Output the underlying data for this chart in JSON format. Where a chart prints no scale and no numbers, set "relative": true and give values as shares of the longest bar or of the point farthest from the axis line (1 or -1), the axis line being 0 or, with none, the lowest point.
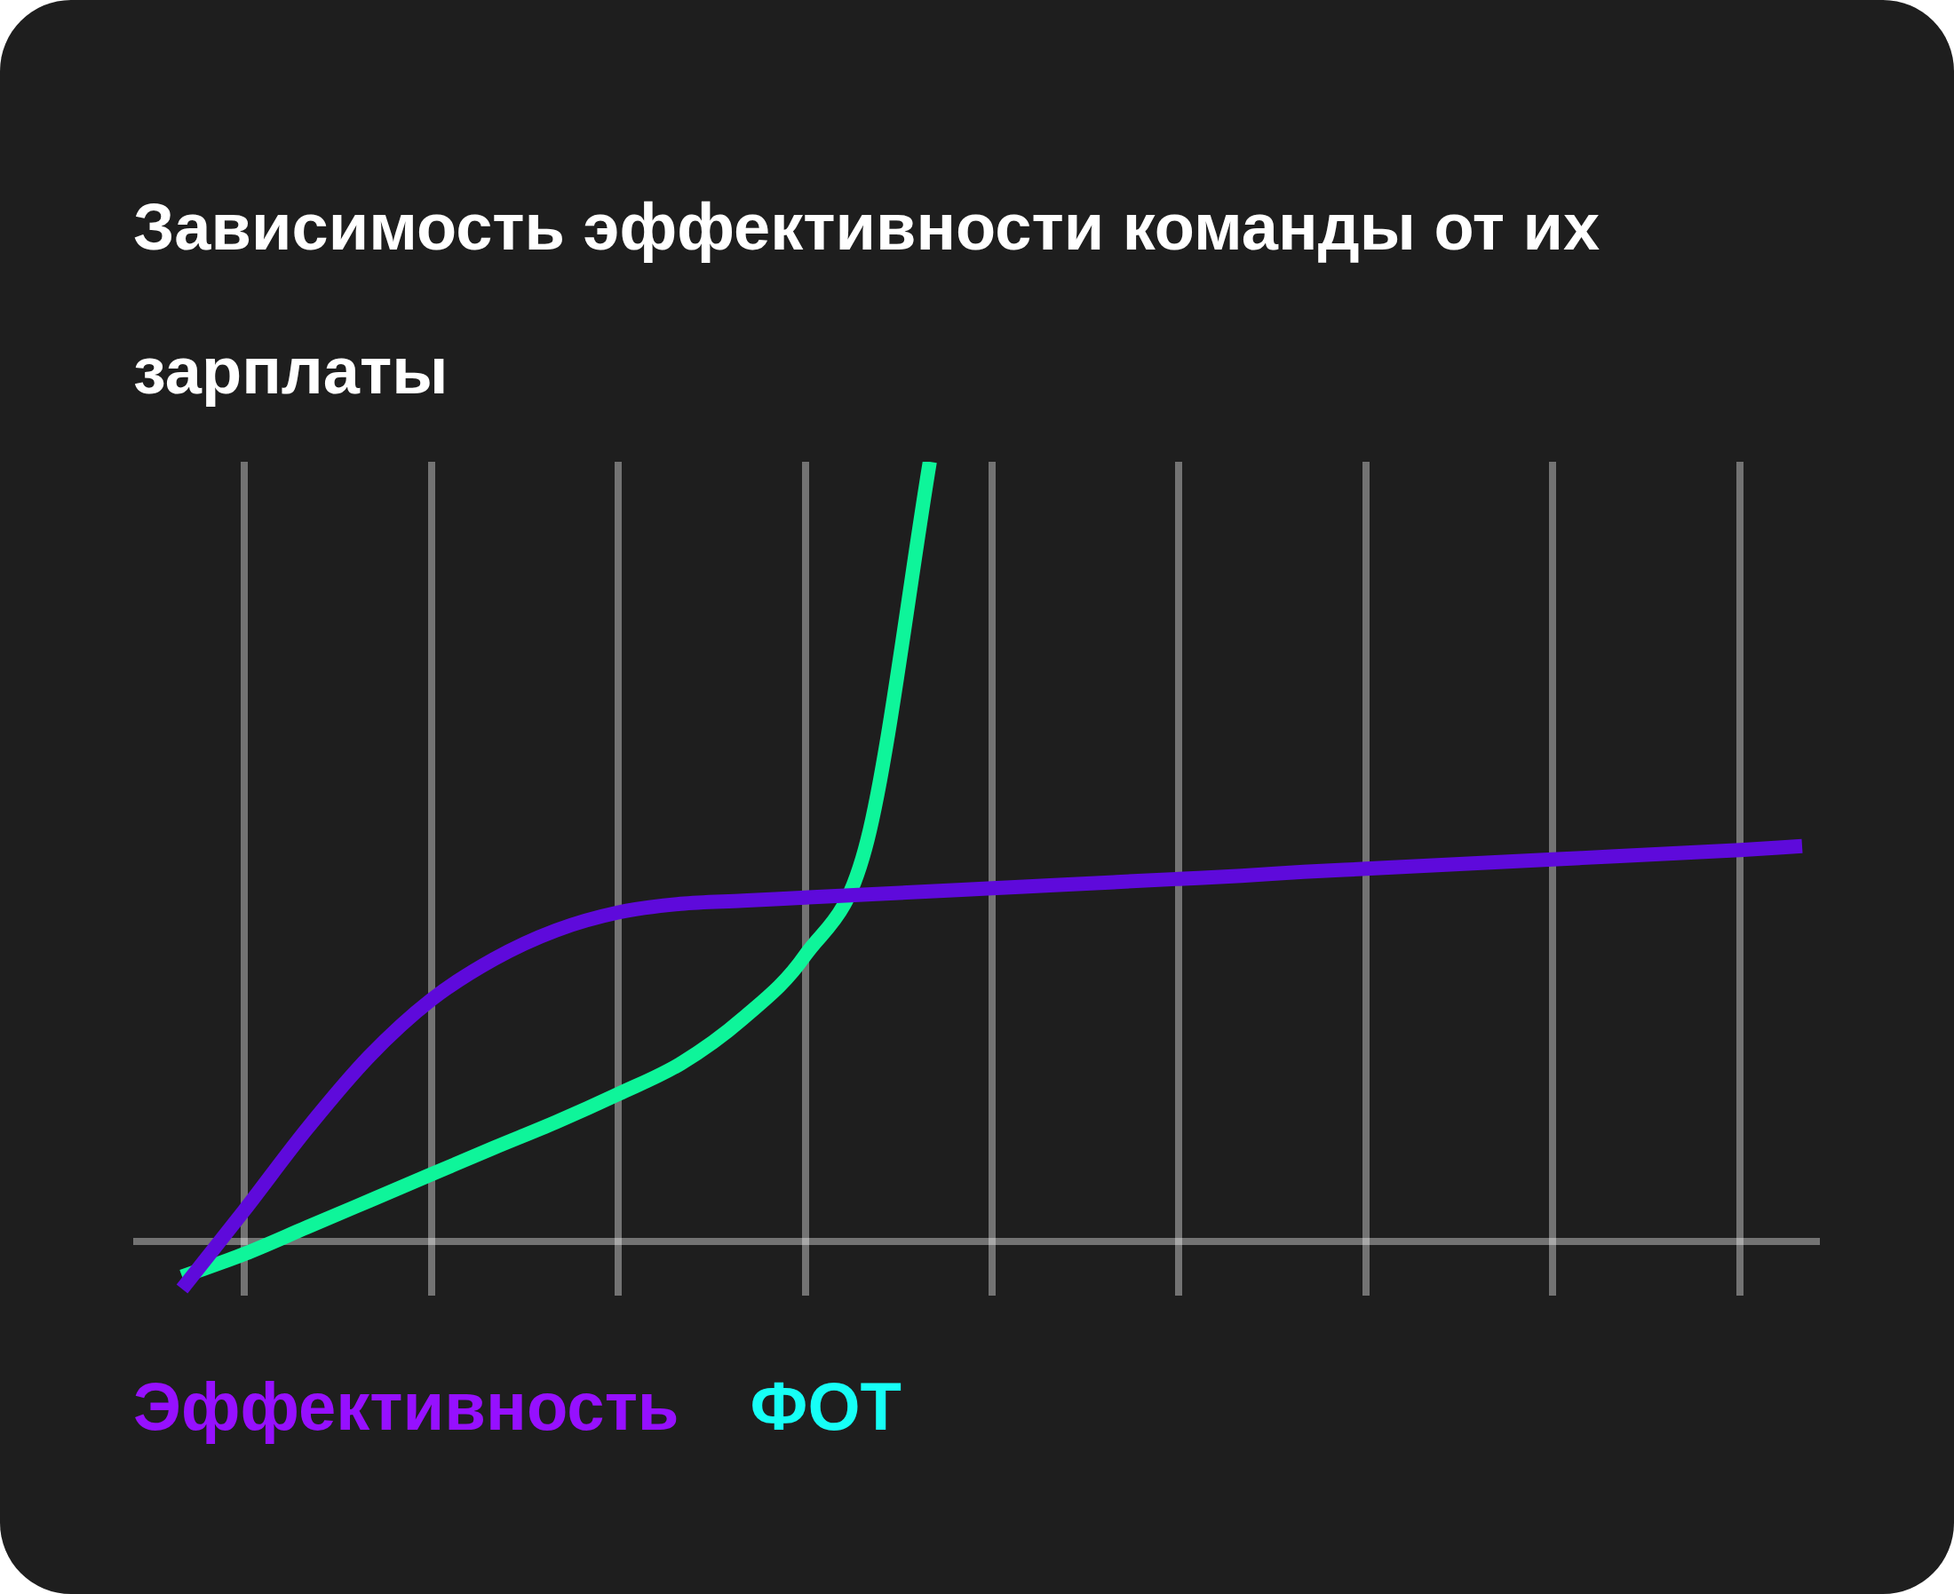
{
  "chart_data": {
    "type": "line",
    "title": "Зависимость эффективности команды от их зарплаты",
    "relative": true,
    "grid": "x",
    "legend": "bottom",
    "categories": [
      null,
      null,
      null,
      null,
      null,
      null,
      null,
      null,
      null,
      null,
      null,
      null,
      null,
      null,
      null,
      null,
      null,
      null,
      null,
      null,
      null,
      null,
      null,
      null,
      null,
      null,
      null
    ],
    "series": [
      {
        "name": "Эффективность",
        "color": "#5e0adb",
        "values": [
          -0.061,
          0.04,
          0.144,
          0.237,
          0.31,
          0.362,
          0.399,
          0.422,
          0.433,
          0.437,
          0.441,
          0.445,
          0.449,
          0.453,
          0.457,
          0.461,
          0.465,
          0.469,
          0.474,
          0.478,
          0.482,
          0.486,
          0.49,
          0.494,
          0.498,
          0.502,
          0.507
        ]
      },
      {
        "name": "ФОТ",
        "color": "#0ef59a",
        "values": [
          -0.045,
          -0.016,
          0.018,
          0.052,
          0.086,
          0.12,
          0.153,
          0.189,
          0.228,
          0.286,
          0.367,
          0.515,
          1,
          null,
          null,
          null,
          null,
          null,
          null,
          null,
          null,
          null,
          null,
          null,
          null,
          null,
          null
        ]
      }
    ]
  }
}
